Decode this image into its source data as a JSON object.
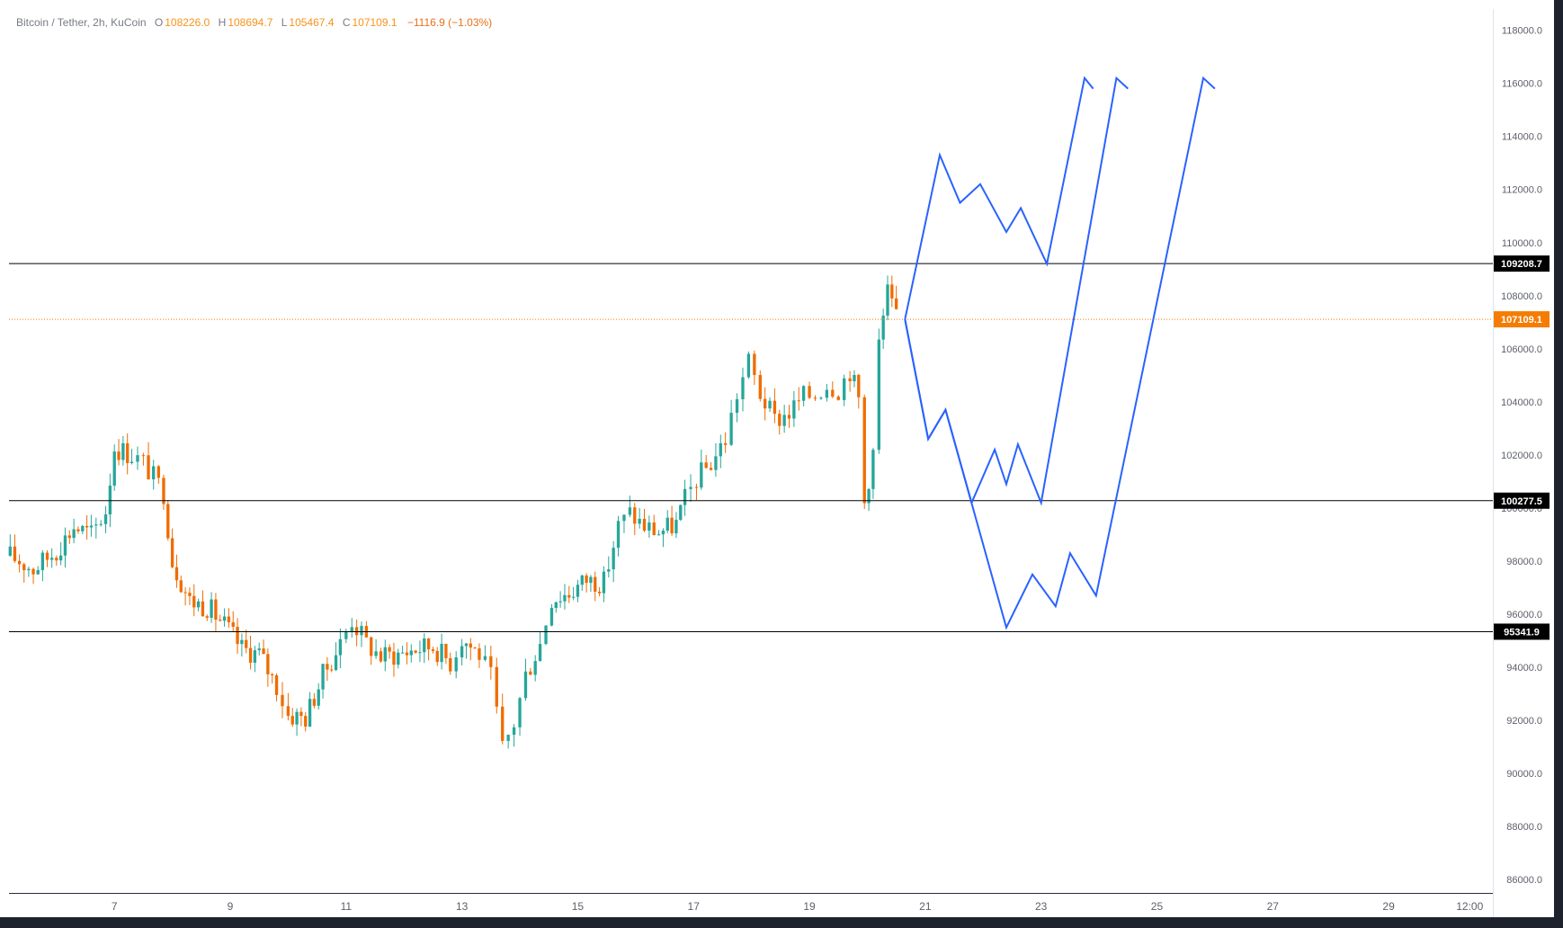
{
  "legend": {
    "symbol": "Bitcoin / Tether, 2h, KuCoin",
    "o_label": "O",
    "o": "108226.0",
    "h_label": "H",
    "h": "108694.7",
    "l_label": "L",
    "l": "105467.4",
    "c_label": "C",
    "c": "107109.1",
    "change": "−1116.9 (−1.03%)"
  },
  "colors": {
    "background": "#ffffff",
    "up": "#26a69a",
    "down": "#ef6c00",
    "projection": "#2962ff",
    "level": "#000000",
    "current": "#f57c00"
  },
  "chart_data": {
    "type": "candlestick",
    "x_unit": "day of month",
    "yaxis_ticks": [
      "86000.0",
      "88000.0",
      "90000.0",
      "92000.0",
      "94000.0",
      "96000.0",
      "98000.0",
      "100000.0",
      "102000.0",
      "104000.0",
      "106000.0",
      "108000.0",
      "110000.0",
      "112000.0",
      "114000.0",
      "116000.0",
      "118000.0"
    ],
    "ylim": [
      85500,
      118800
    ],
    "xlim": [
      5.18,
      30.8
    ],
    "xaxis_ticks": [
      {
        "label": "7",
        "x": 7
      },
      {
        "label": "9",
        "x": 9
      },
      {
        "label": "11",
        "x": 11
      },
      {
        "label": "13",
        "x": 13
      },
      {
        "label": "15",
        "x": 15
      },
      {
        "label": "17",
        "x": 17
      },
      {
        "label": "19",
        "x": 19
      },
      {
        "label": "21",
        "x": 21
      },
      {
        "label": "23",
        "x": 23
      },
      {
        "label": "25",
        "x": 25
      },
      {
        "label": "27",
        "x": 27
      },
      {
        "label": "29",
        "x": 29
      },
      {
        "label": "12:00",
        "x": 30.4
      }
    ],
    "levels": [
      {
        "label": "109208.7",
        "value": 109208.7
      },
      {
        "label": "100277.5",
        "value": 100277.5
      },
      {
        "label": "95341.9",
        "value": 95341.9
      }
    ],
    "current_price": {
      "label": "107109.1",
      "value": 107109.1
    },
    "close_path": [
      [
        5.2,
        98200
      ],
      [
        5.6,
        97700
      ],
      [
        6.0,
        98400
      ],
      [
        6.3,
        99300
      ],
      [
        6.6,
        99000
      ],
      [
        6.85,
        99900
      ],
      [
        7.0,
        102300
      ],
      [
        7.3,
        102000
      ],
      [
        7.5,
        101700
      ],
      [
        7.85,
        100600
      ],
      [
        8.0,
        98000
      ],
      [
        8.3,
        96500
      ],
      [
        8.6,
        96300
      ],
      [
        8.9,
        95600
      ],
      [
        9.2,
        94700
      ],
      [
        9.5,
        94500
      ],
      [
        9.8,
        93300
      ],
      [
        10.0,
        92200
      ],
      [
        10.3,
        92100
      ],
      [
        10.6,
        93700
      ],
      [
        10.9,
        94900
      ],
      [
        11.1,
        95800
      ],
      [
        11.35,
        94900
      ],
      [
        11.6,
        94400
      ],
      [
        11.9,
        94500
      ],
      [
        12.2,
        94700
      ],
      [
        12.5,
        94800
      ],
      [
        12.8,
        94200
      ],
      [
        13.0,
        95100
      ],
      [
        13.3,
        94500
      ],
      [
        13.5,
        93600
      ],
      [
        13.7,
        90900
      ],
      [
        13.9,
        91900
      ],
      [
        14.1,
        93700
      ],
      [
        14.35,
        94900
      ],
      [
        14.55,
        96600
      ],
      [
        14.85,
        96800
      ],
      [
        15.15,
        97300
      ],
      [
        15.45,
        97200
      ],
      [
        15.7,
        99300
      ],
      [
        15.9,
        99800
      ],
      [
        16.15,
        99300
      ],
      [
        16.4,
        99100
      ],
      [
        16.7,
        99400
      ],
      [
        16.85,
        100300
      ],
      [
        17.05,
        101100
      ],
      [
        17.3,
        101700
      ],
      [
        17.55,
        102600
      ],
      [
        17.75,
        104300
      ],
      [
        17.95,
        105500
      ],
      [
        18.15,
        104300
      ],
      [
        18.4,
        103300
      ],
      [
        18.65,
        103600
      ],
      [
        18.9,
        104200
      ],
      [
        19.1,
        104300
      ],
      [
        19.3,
        104700
      ],
      [
        19.5,
        104500
      ],
      [
        19.7,
        105200
      ],
      [
        19.85,
        104100
      ],
      [
        19.95,
        100200
      ],
      [
        20.1,
        102100
      ],
      [
        20.2,
        106200
      ],
      [
        20.35,
        108100
      ],
      [
        20.5,
        107109
      ]
    ],
    "projection_paths": [
      [
        [
          20.65,
          107109
        ],
        [
          21.25,
          113300
        ],
        [
          21.6,
          111500
        ],
        [
          21.95,
          112200
        ],
        [
          22.4,
          110400
        ],
        [
          22.65,
          111300
        ],
        [
          23.1,
          109200
        ],
        [
          23.75,
          116200
        ],
        [
          23.9,
          115800
        ]
      ],
      [
        [
          20.65,
          107109
        ],
        [
          21.05,
          102600
        ],
        [
          21.35,
          103700
        ],
        [
          21.8,
          100200
        ],
        [
          22.2,
          102200
        ],
        [
          22.4,
          100900
        ],
        [
          22.6,
          102400
        ],
        [
          23.0,
          100200
        ],
        [
          24.3,
          116200
        ],
        [
          24.5,
          115800
        ]
      ],
      [
        [
          20.65,
          107109
        ],
        [
          21.05,
          102600
        ],
        [
          21.35,
          103700
        ],
        [
          22.4,
          95500
        ],
        [
          22.85,
          97500
        ],
        [
          23.25,
          96300
        ],
        [
          23.5,
          98300
        ],
        [
          23.95,
          96700
        ],
        [
          25.8,
          116200
        ],
        [
          26.0,
          115800
        ]
      ]
    ]
  }
}
